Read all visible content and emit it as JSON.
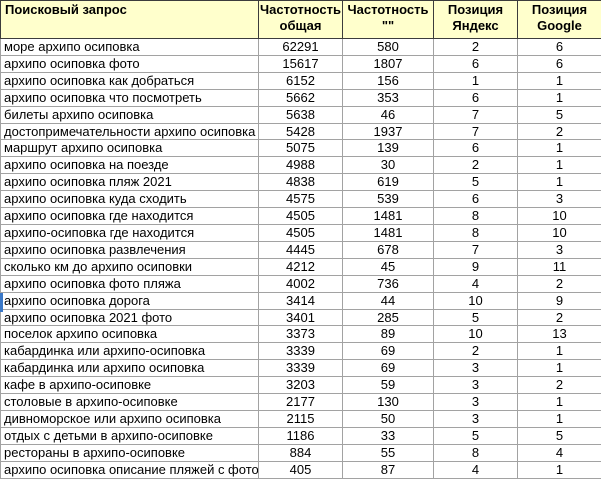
{
  "table": {
    "columns": [
      {
        "id": "query",
        "label": "Поисковый запрос"
      },
      {
        "id": "freq_total",
        "label": "Частотность общая"
      },
      {
        "id": "freq_exact",
        "label": "Частотность \"\""
      },
      {
        "id": "pos_yandex",
        "label": "Позиция Яндекс"
      },
      {
        "id": "pos_google",
        "label": "Позиция Google"
      }
    ],
    "rows": [
      [
        "море архипо осиповка",
        "62291",
        "580",
        "2",
        "6"
      ],
      [
        "архипо осиповка фото",
        "15617",
        "1807",
        "6",
        "6"
      ],
      [
        "архипо осиповка как добраться",
        "6152",
        "156",
        "1",
        "1"
      ],
      [
        "архипо осиповка что посмотреть",
        "5662",
        "353",
        "6",
        "1"
      ],
      [
        "билеты архипо осиповка",
        "5638",
        "46",
        "7",
        "5"
      ],
      [
        "достопримечательности архипо осиповка",
        "5428",
        "1937",
        "7",
        "2"
      ],
      [
        "маршрут архипо осиповка",
        "5075",
        "139",
        "6",
        "1"
      ],
      [
        "архипо осиповка на поезде",
        "4988",
        "30",
        "2",
        "1"
      ],
      [
        "архипо осиповка пляж 2021",
        "4838",
        "619",
        "5",
        "1"
      ],
      [
        "архипо осиповка куда сходить",
        "4575",
        "539",
        "6",
        "3"
      ],
      [
        "архипо осиповка где находится",
        "4505",
        "1481",
        "8",
        "10"
      ],
      [
        "архипо-осиповка где находится",
        "4505",
        "1481",
        "8",
        "10"
      ],
      [
        "архипо осиповка развлечения",
        "4445",
        "678",
        "7",
        "3"
      ],
      [
        "сколько км до архипо осиповки",
        "4212",
        "45",
        "9",
        "11"
      ],
      [
        "архипо осиповка фото пляжа",
        "4002",
        "736",
        "4",
        "2"
      ],
      [
        "архипо осиповка дорога",
        "3414",
        "44",
        "10",
        "9"
      ],
      [
        "архипо осиповка 2021 фото",
        "3401",
        "285",
        "5",
        "2"
      ],
      [
        "поселок архипо осиповка",
        "3373",
        "89",
        "10",
        "13"
      ],
      [
        "кабардинка или архипо-осиповка",
        "3339",
        "69",
        "2",
        "1"
      ],
      [
        "кабардинка или архипо осиповка",
        "3339",
        "69",
        "3",
        "1"
      ],
      [
        "кафе в архипо-осиповке",
        "3203",
        "59",
        "3",
        "2"
      ],
      [
        "столовые в архипо-осиповке",
        "2177",
        "130",
        "3",
        "1"
      ],
      [
        "дивноморское или архипо осиповка",
        "2115",
        "50",
        "3",
        "1"
      ],
      [
        "отдых с детьми в архипо-осиповке",
        "1186",
        "33",
        "5",
        "5"
      ],
      [
        "рестораны в архипо-осиповке",
        "884",
        "55",
        "8",
        "4"
      ],
      [
        "архипо осиповка описание пляжей с фото",
        "405",
        "87",
        "4",
        "1"
      ]
    ]
  },
  "colors": {
    "header_bg": "#ffffcc",
    "selection_indicator": "#3a78c8",
    "gridline": "#a2a2a2",
    "header_gridline": "#3c3c3c"
  }
}
